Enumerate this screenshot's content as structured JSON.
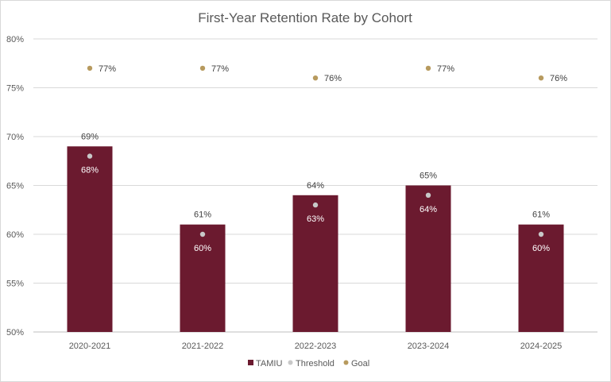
{
  "chart_data": {
    "type": "bar",
    "title": "First-Year Retention Rate by Cohort",
    "categories": [
      "2020-2021",
      "2021-2022",
      "2022-2023",
      "2023-2024",
      "2024-2025"
    ],
    "ylim": [
      0.5,
      0.8
    ],
    "yticks": [
      0.5,
      0.55,
      0.6,
      0.65,
      0.7,
      0.75,
      0.8
    ],
    "ytick_labels": [
      "50%",
      "55%",
      "60%",
      "65%",
      "70%",
      "75%",
      "80%"
    ],
    "grid": true,
    "legend_position": "bottom",
    "series": [
      {
        "name": "TAMIU",
        "kind": "bar",
        "color": "#6b1a2f",
        "values": [
          0.69,
          0.61,
          0.64,
          0.65,
          0.61
        ],
        "labels": [
          "69%",
          "61%",
          "64%",
          "65%",
          "61%"
        ]
      },
      {
        "name": "Threshold",
        "kind": "marker",
        "color": "#c8c8c8",
        "values": [
          0.68,
          0.6,
          0.63,
          0.64,
          0.6
        ],
        "labels": [
          "68%",
          "60%",
          "63%",
          "64%",
          "60%"
        ]
      },
      {
        "name": "Goal",
        "kind": "marker",
        "color": "#b79a5e",
        "values": [
          0.77,
          0.77,
          0.76,
          0.77,
          0.76
        ],
        "labels": [
          "77%",
          "77%",
          "76%",
          "77%",
          "76%"
        ]
      }
    ]
  }
}
